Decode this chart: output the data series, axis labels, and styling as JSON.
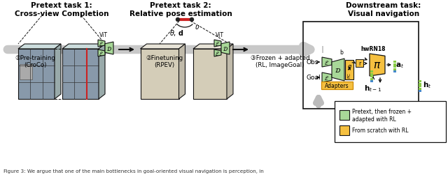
{
  "pretext1_title": "Pretext task 1:\nCross-view Completion",
  "pretext2_title": "Pretext task 2:\nRelative pose estimation",
  "downstream_title": "Downstream task:\nVisual navigation",
  "step1_label": "①Pre-training\n(CroCo)",
  "step2_label": "②Finetuning\n(RPEV)",
  "step3_label": "③Frozen + adapted\n(RL, ImageGoal)",
  "legend1": "Pretext, then frozen +\nadapted with RL",
  "legend2": "From scratch with RL",
  "color_green": "#a8d898",
  "color_orange": "#f5c040",
  "color_gray_arrow": "#c8c8c8",
  "color_dark": "#111111",
  "color_white": "#ffffff",
  "caption": "Figure 3: We argue that one of the main bottlenecks in goal-oriented visual navigation is perception, in"
}
